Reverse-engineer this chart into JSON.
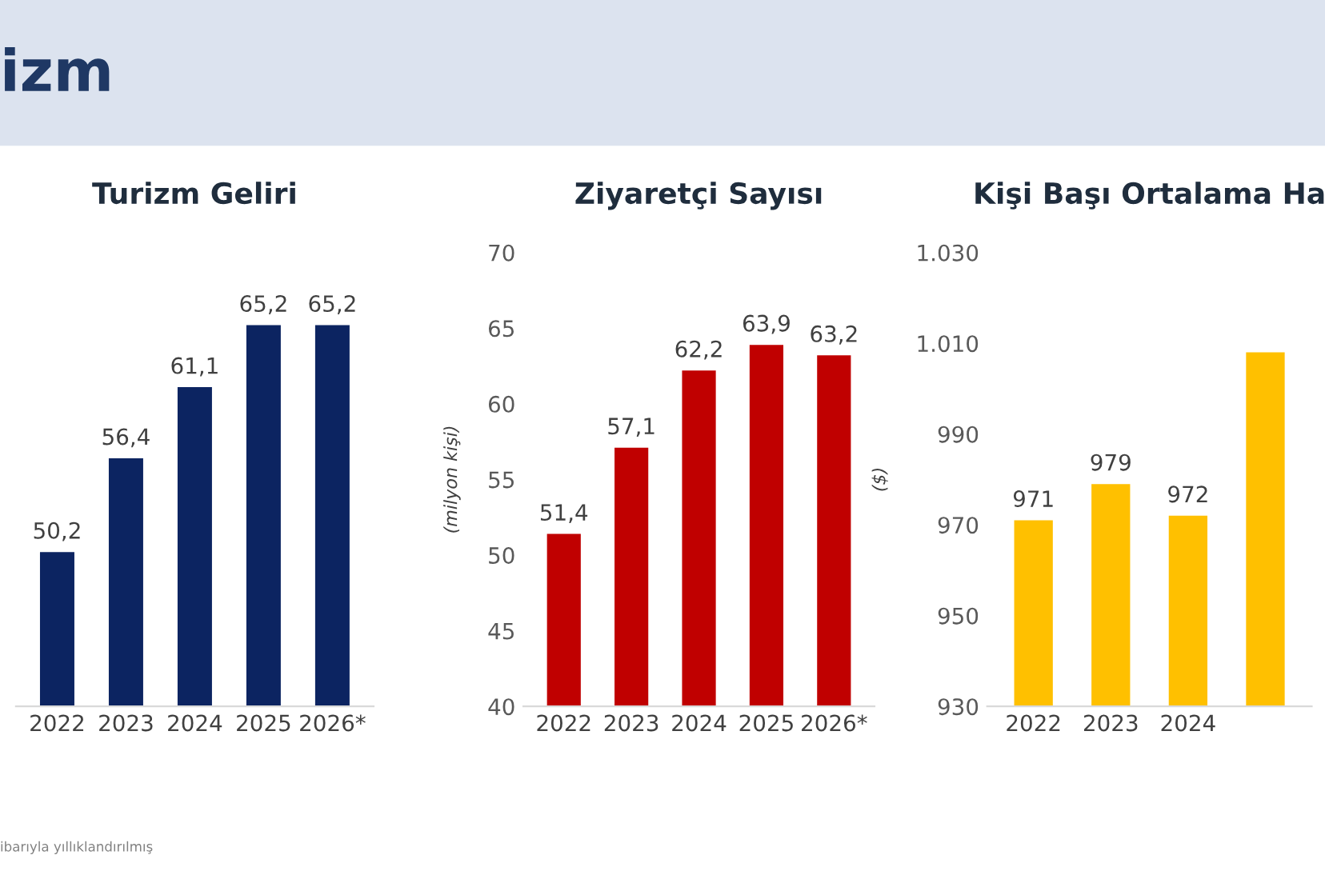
{
  "chart_data": [
    {
      "type": "bar",
      "title": "Turizm Geliri",
      "categories": [
        "2022",
        "2023",
        "2024",
        "2025",
        "2026*"
      ],
      "values": [
        50.2,
        56.4,
        61.1,
        65.2,
        65.2
      ],
      "color": "#0c2461",
      "value_labels": [
        "50,2",
        "56,4",
        "61,1",
        "65,2",
        "65,2"
      ],
      "ylim": [
        40,
        70
      ],
      "tick_labels": "x",
      "grid": false,
      "legend": false,
      "annotations": [
        "izm",
        "ibarıyla yıllıklandırılmış"
      ]
    },
    {
      "type": "bar",
      "title": "Ziyaretçi Sayısı",
      "ylabel": "(milyon kişi)",
      "categories": [
        "2022",
        "2023",
        "2024",
        "2025",
        "2026*"
      ],
      "values": [
        51.4,
        57.1,
        62.2,
        63.9,
        63.2
      ],
      "color": "#c00000",
      "value_labels": [
        "51,4",
        "57,1",
        "62,2",
        "63,9",
        "63,2"
      ],
      "ylim": [
        40,
        70
      ],
      "yticks": [
        40,
        45,
        50,
        55,
        60,
        65,
        70
      ],
      "grid": false,
      "legend": false
    },
    {
      "type": "bar",
      "title": "Kişi Başı Ortalama Ha",
      "ylabel": "($)",
      "categories": [
        "2022",
        "2023",
        "2024",
        null
      ],
      "values": [
        971,
        979,
        972,
        1008
      ],
      "color": "#ffc000",
      "value_labels": [
        "971",
        "979",
        "972",
        null
      ],
      "ylim": [
        930,
        1030
      ],
      "yticks": [
        930,
        950,
        970,
        990,
        {
          "value": 1010,
          "label": "1.010"
        },
        {
          "value": 1030,
          "label": "1.030"
        }
      ],
      "grid": false,
      "legend": false
    }
  ]
}
